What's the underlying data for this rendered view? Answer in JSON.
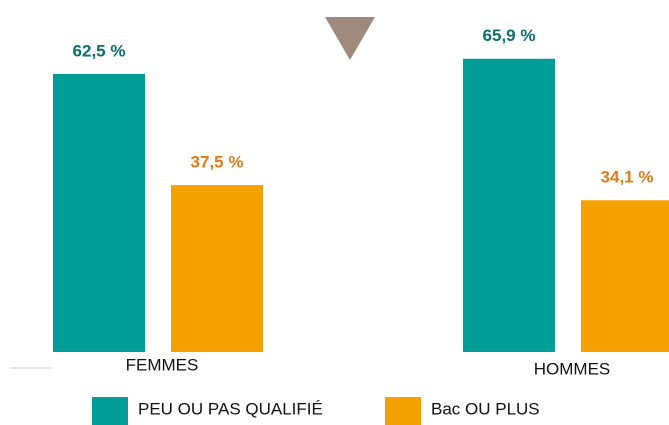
{
  "chart_data": {
    "type": "bar",
    "categories": [
      "FEMMES",
      "HOMMES"
    ],
    "series": [
      {
        "name": "PEU OU PAS QUALIFIÉ",
        "color": "#009e96",
        "values": [
          62.5,
          65.9
        ],
        "value_labels": [
          "62,5 %",
          "65,9 %"
        ]
      },
      {
        "name": "Bac OU PLUS",
        "color": "#f5a100",
        "values": [
          37.5,
          34.1
        ],
        "value_labels": [
          "37,5 %",
          "34,1 %"
        ]
      }
    ],
    "ylim": [
      0,
      80
    ]
  }
}
